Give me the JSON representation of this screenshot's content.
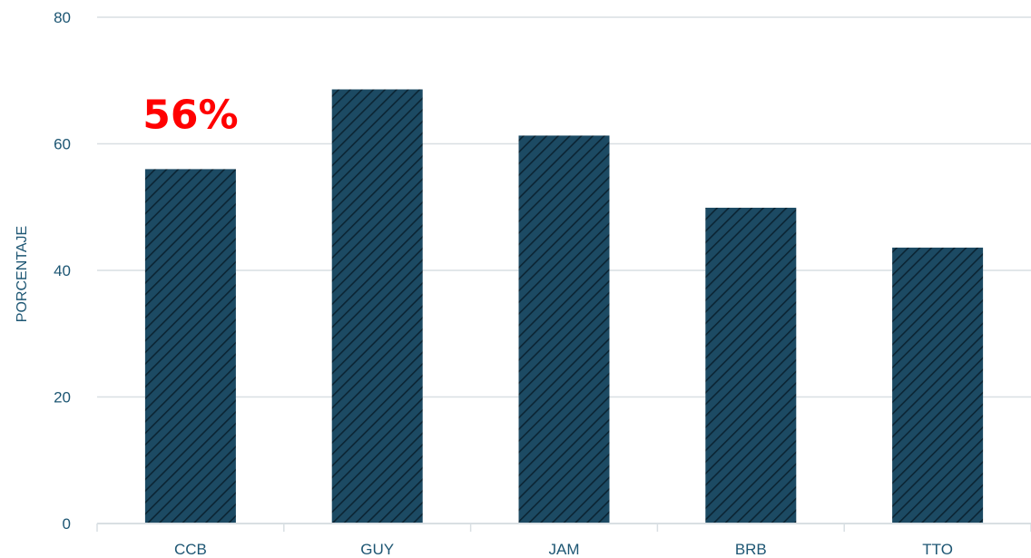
{
  "chart_data": {
    "type": "bar",
    "categories": [
      "CCB",
      "GUY",
      "JAM",
      "BRB",
      "TTO"
    ],
    "values": [
      56,
      68.6,
      61.3,
      49.9,
      43.6
    ],
    "title": "",
    "xlabel": "",
    "ylabel": "PORCENTAJE",
    "ylim": [
      0,
      80
    ],
    "yticks": [
      0,
      20,
      40,
      60,
      80
    ],
    "grid": true,
    "legend": "none",
    "bar_pattern": "diagonal-hatch",
    "annotations": [
      {
        "category": "CCB",
        "text": "56%"
      }
    ]
  },
  "colors": {
    "bar_fill": "#1c4a63",
    "bar_hatch": "#0b2433",
    "grid": "#d9dfe3",
    "axis_text": "#1d5673",
    "annotation": "#ff0000"
  }
}
